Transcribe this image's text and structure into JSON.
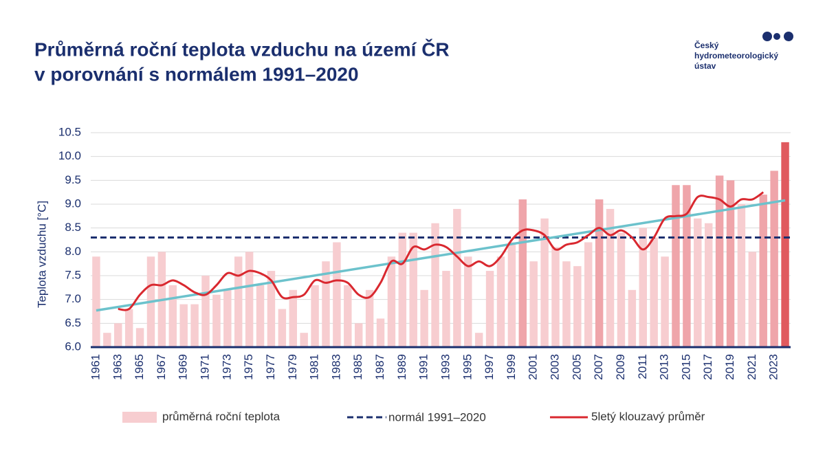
{
  "header": {
    "title_lines": [
      "Průměrná roční teplota vzduchu na území ČR",
      "v porovnání s normálem 1991–2020"
    ],
    "logo_lines": [
      "Český",
      "hydrometeorologický",
      "ústav"
    ]
  },
  "chart_data": {
    "type": "bar",
    "y_label": "Teplota vzduchu [°C]",
    "categories": [
      "1961",
      null,
      "1963",
      null,
      "1965",
      null,
      "1967",
      null,
      "1969",
      null,
      "1971",
      null,
      "1973",
      null,
      "1975",
      null,
      "1977",
      null,
      "1979",
      null,
      "1981",
      null,
      "1983",
      null,
      "1985",
      null,
      "1987",
      null,
      "1989",
      null,
      "1991",
      null,
      "1993",
      null,
      "1995",
      null,
      "1997",
      null,
      "1999",
      null,
      "2001",
      null,
      "2003",
      null,
      "2005",
      null,
      "2007",
      null,
      "2009",
      null,
      "2011",
      null,
      "2013",
      null,
      "2015",
      null,
      "2017",
      null,
      "2019",
      null,
      "2021",
      null,
      "2023",
      null
    ],
    "ylim": [
      6.0,
      10.5
    ],
    "yticks": [
      {
        "value": 6,
        "label": "6.0"
      },
      6.5,
      {
        "value": 7,
        "label": "7.0"
      },
      7.5,
      {
        "value": 8,
        "label": "8.0"
      },
      8.5,
      {
        "value": 9,
        "label": "9.0"
      },
      9.5,
      {
        "value": 10,
        "label": "10.0"
      },
      10.5
    ],
    "grid": true,
    "series": [
      {
        "name": "průměrná roční teplota",
        "color": "#f7cdd0",
        "colors": [
          "#f7cdd0",
          "#f7cdd0",
          "#f7cdd0",
          "#f7cdd0",
          "#f7cdd0",
          "#f7cdd0",
          "#f7cdd0",
          "#f7cdd0",
          "#f7cdd0",
          "#f7cdd0",
          "#f7cdd0",
          "#f7cdd0",
          "#f7cdd0",
          "#f7cdd0",
          "#f7cdd0",
          "#f7cdd0",
          "#f7cdd0",
          "#f7cdd0",
          "#f7cdd0",
          "#f7cdd0",
          "#f7cdd0",
          "#f7cdd0",
          "#f7cdd0",
          "#f7cdd0",
          "#f7cdd0",
          "#f7cdd0",
          "#f7cdd0",
          "#f7cdd0",
          "#f7cdd0",
          "#f7cdd0",
          "#f7cdd0",
          "#f7cdd0",
          "#f7cdd0",
          "#f7cdd0",
          "#f7cdd0",
          "#f7cdd0",
          "#f7cdd0",
          "#f7cdd0",
          "#f7cdd0",
          "#efa5aa",
          "#f7cdd0",
          "#f7cdd0",
          "#f7cdd0",
          "#f7cdd0",
          "#f7cdd0",
          "#f7cdd0",
          "#efa5aa",
          "#f7cdd0",
          "#f7cdd0",
          "#f7cdd0",
          "#f7cdd0",
          "#f7cdd0",
          "#f7cdd0",
          "#efa5aa",
          "#efa5aa",
          "#f7cdd0",
          "#f7cdd0",
          "#efa5aa",
          "#efa5aa",
          "#f7cdd0",
          "#f7cdd0",
          "#efa5aa",
          "#efa5aa",
          "#e05a5f"
        ],
        "values": [
          7.9,
          6.3,
          6.5,
          6.8,
          6.4,
          7.9,
          8.0,
          7.3,
          6.9,
          6.9,
          7.5,
          7.1,
          7.2,
          7.9,
          8.0,
          7.3,
          7.6,
          6.8,
          7.2,
          6.3,
          7.3,
          7.8,
          8.2,
          7.3,
          6.5,
          7.2,
          6.6,
          7.9,
          8.4,
          8.4,
          7.2,
          8.6,
          7.6,
          8.9,
          7.9,
          6.3,
          7.6,
          7.9,
          8.2,
          9.1,
          7.8,
          8.7,
          8.1,
          7.8,
          7.7,
          8.2,
          9.1,
          8.9,
          8.4,
          7.2,
          8.5,
          8.3,
          7.9,
          9.4,
          9.4,
          8.7,
          8.6,
          9.6,
          9.5,
          9.0,
          8.0,
          9.2,
          9.7,
          10.3
        ]
      },
      {
        "name": "normál 1991–2020",
        "color": "#1b2f6e",
        "value": 8.3
      },
      {
        "name": "5letý klouzavý průměr",
        "color": "#d9282f",
        "values": [
          null,
          null,
          6.8,
          6.8,
          7.1,
          7.3,
          7.3,
          7.4,
          7.3,
          7.15,
          7.1,
          7.3,
          7.55,
          7.5,
          7.6,
          7.55,
          7.4,
          7.05,
          7.05,
          7.1,
          7.4,
          7.35,
          7.4,
          7.35,
          7.1,
          7.05,
          7.35,
          7.8,
          7.75,
          8.1,
          8.05,
          8.15,
          8.1,
          7.9,
          7.7,
          7.8,
          7.7,
          7.9,
          8.25,
          8.45,
          8.45,
          8.35,
          8.05,
          8.15,
          8.2,
          8.35,
          8.5,
          8.35,
          8.45,
          8.3,
          8.05,
          8.3,
          8.7,
          8.75,
          8.8,
          9.15,
          9.15,
          9.1,
          8.95,
          9.1,
          9.1,
          9.25,
          null,
          null
        ]
      }
    ],
    "trend": {
      "color": "#6cc2cc",
      "values": [
        6.77,
        9.08
      ]
    }
  }
}
